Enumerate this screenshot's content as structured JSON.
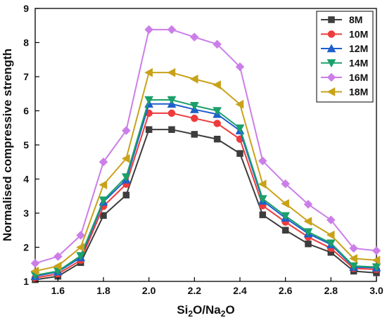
{
  "chart_data": {
    "type": "line",
    "title": "",
    "xlabel": "Si2O/Na2O",
    "ylabel": "Normalised compressive strength",
    "xlim": [
      1.5,
      3.0
    ],
    "ylim": [
      1,
      9
    ],
    "xticks": [
      1.6,
      1.8,
      2.0,
      2.2,
      2.4,
      2.6,
      2.8,
      3.0
    ],
    "yticks": [
      1,
      2,
      3,
      4,
      5,
      6,
      7,
      8,
      9
    ],
    "x": [
      1.5,
      1.6,
      1.7,
      1.8,
      1.9,
      2.0,
      2.1,
      2.2,
      2.3,
      2.4,
      2.5,
      2.6,
      2.7,
      2.8,
      2.9,
      3.0
    ],
    "legend_position": "top-right",
    "grid": false,
    "series": [
      {
        "name": "8M",
        "color": "#3d3d3d",
        "marker": "square",
        "values": [
          1.05,
          1.15,
          1.55,
          2.93,
          3.53,
          5.45,
          5.45,
          5.31,
          5.17,
          4.75,
          2.95,
          2.5,
          2.1,
          1.85,
          1.3,
          1.25
        ]
      },
      {
        "name": "10M",
        "color": "#ee3b3b",
        "marker": "circle",
        "values": [
          1.1,
          1.22,
          1.62,
          3.2,
          3.85,
          5.93,
          5.93,
          5.78,
          5.63,
          5.17,
          3.22,
          2.74,
          2.3,
          1.97,
          1.38,
          1.35
        ]
      },
      {
        "name": "12M",
        "color": "#1e5fcc",
        "marker": "triangle-up",
        "values": [
          1.15,
          1.28,
          1.7,
          3.33,
          3.98,
          6.2,
          6.2,
          6.04,
          5.9,
          5.42,
          3.36,
          2.86,
          2.4,
          2.08,
          1.42,
          1.4
        ]
      },
      {
        "name": "14M",
        "color": "#1aa06a",
        "marker": "triangle-down",
        "values": [
          1.18,
          1.3,
          1.75,
          3.38,
          4.06,
          6.32,
          6.32,
          6.15,
          6.0,
          5.49,
          3.42,
          2.92,
          2.45,
          2.12,
          1.45,
          1.42
        ]
      },
      {
        "name": "16M",
        "color": "#cc7ee8",
        "marker": "diamond",
        "values": [
          1.53,
          1.73,
          2.35,
          4.5,
          5.42,
          8.38,
          8.38,
          8.16,
          7.95,
          7.29,
          4.53,
          3.86,
          3.26,
          2.8,
          1.97,
          1.9
        ]
      },
      {
        "name": "18M",
        "color": "#c9a21a",
        "marker": "triangle-left",
        "values": [
          1.3,
          1.45,
          2.0,
          3.83,
          4.6,
          7.12,
          7.12,
          6.93,
          6.76,
          6.19,
          3.85,
          3.28,
          2.76,
          2.36,
          1.67,
          1.62
        ]
      }
    ]
  }
}
